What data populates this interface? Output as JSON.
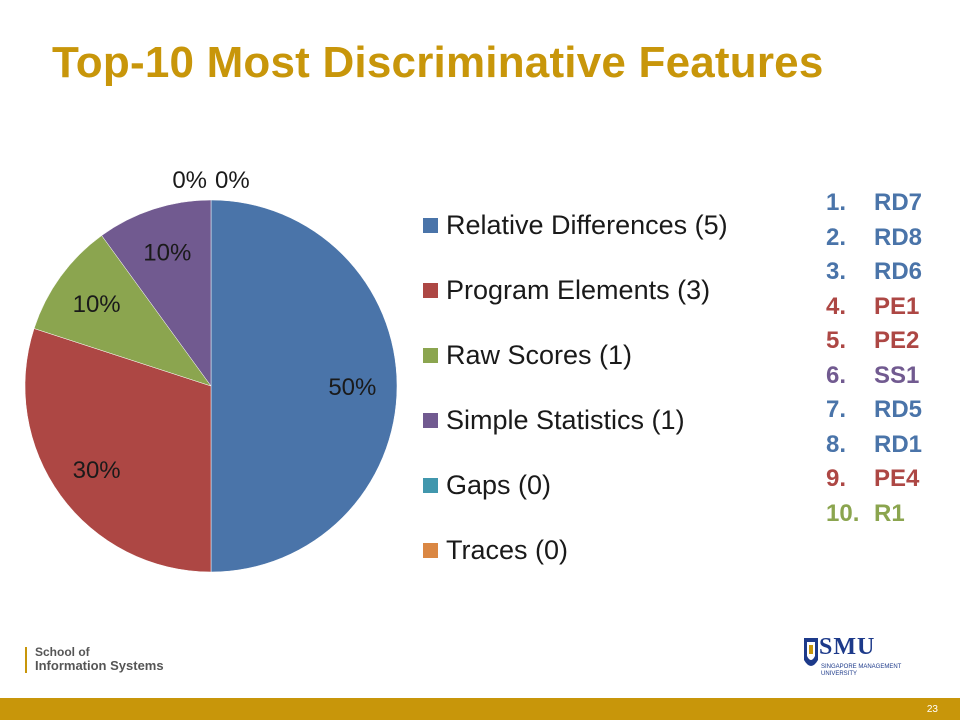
{
  "slide": {
    "title": "Top-10 Most Discriminative Features",
    "school_line1": "School of",
    "school_line2": "Information Systems",
    "logo_name": "SMU",
    "logo_sub1": "SINGAPORE MANAGEMENT",
    "logo_sub2": "UNIVERSITY",
    "page_number": "23"
  },
  "chart_data": {
    "type": "pie",
    "title": "",
    "series": [
      {
        "name": "Relative Differences (5)",
        "value": 50,
        "label": "50%",
        "color": "#4a74a9"
      },
      {
        "name": "Program Elements (3)",
        "value": 30,
        "label": "30%",
        "color": "#ad4744"
      },
      {
        "name": "Raw Scores (1)",
        "value": 10,
        "label": "10%",
        "color": "#8ba54f"
      },
      {
        "name": "Simple Statistics (1)",
        "value": 10,
        "label": "10%",
        "color": "#715a90"
      },
      {
        "name": "Gaps (0)",
        "value": 0,
        "label": "0%",
        "color": "#4197ad"
      },
      {
        "name": "Traces (0)",
        "value": 0,
        "label": "0%",
        "color": "#da8743"
      }
    ],
    "legend_position": "right"
  },
  "ranking": [
    {
      "num": "1.",
      "code": "RD7",
      "color": "#4a74a9"
    },
    {
      "num": "2.",
      "code": "RD8",
      "color": "#4a74a9"
    },
    {
      "num": "3.",
      "code": "RD6",
      "color": "#4a74a9"
    },
    {
      "num": "4.",
      "code": "PE1",
      "color": "#ad4744"
    },
    {
      "num": "5.",
      "code": "PE2",
      "color": "#ad4744"
    },
    {
      "num": "6.",
      "code": "SS1",
      "color": "#715a90"
    },
    {
      "num": "7.",
      "code": "RD5",
      "color": "#4a74a9"
    },
    {
      "num": "8.",
      "code": "RD1",
      "color": "#4a74a9"
    },
    {
      "num": "9.",
      "code": "PE4",
      "color": "#ad4744"
    },
    {
      "num": "10.",
      "code": "R1",
      "color": "#8ba54f"
    }
  ]
}
